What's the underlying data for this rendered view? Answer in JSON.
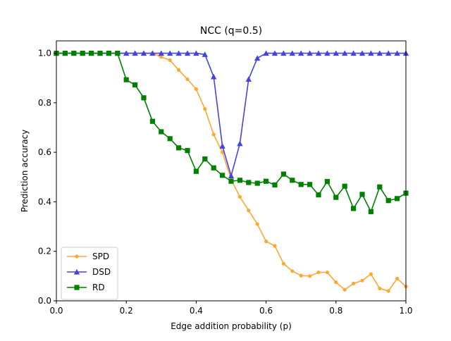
{
  "chart_data": {
    "type": "line",
    "title": "NCC (q=0.5)",
    "xlabel": "Edge addition probability (p)",
    "ylabel": "Prediction accuracy",
    "xlim": [
      0.0,
      1.0
    ],
    "ylim": [
      0.0,
      1.05
    ],
    "xticks": [
      "0.0",
      "0.2",
      "0.4",
      "0.6",
      "0.8",
      "1.0"
    ],
    "yticks": [
      "0.0",
      "0.2",
      "0.4",
      "0.6",
      "0.8",
      "1.0"
    ],
    "legend_position": "lower-left",
    "grid": false,
    "x": [
      0.0,
      0.025,
      0.05,
      0.075,
      0.1,
      0.125,
      0.15,
      0.175,
      0.2,
      0.225,
      0.25,
      0.275,
      0.3,
      0.325,
      0.35,
      0.375,
      0.4,
      0.425,
      0.45,
      0.475,
      0.5,
      0.525,
      0.55,
      0.575,
      0.6,
      0.625,
      0.65,
      0.675,
      0.7,
      0.725,
      0.75,
      0.775,
      0.8,
      0.825,
      0.85,
      0.875,
      0.9,
      0.925,
      0.95,
      0.975,
      1.0
    ],
    "series": [
      {
        "name": "SPD",
        "color": "#ffa733",
        "marker": "dot",
        "values": [
          1.0,
          1.0,
          1.0,
          1.0,
          1.0,
          1.0,
          1.0,
          1.0,
          1.0,
          1.0,
          1.0,
          1.0,
          0.985,
          0.972,
          0.932,
          0.895,
          0.855,
          0.775,
          0.672,
          0.6,
          0.49,
          0.42,
          0.365,
          0.31,
          0.24,
          0.222,
          0.15,
          0.12,
          0.102,
          0.1,
          0.115,
          0.115,
          0.075,
          0.045,
          0.07,
          0.082,
          0.108,
          0.05,
          0.04,
          0.09,
          0.058
        ]
      },
      {
        "name": "DSD",
        "color": "#4444dd",
        "marker": "triangle",
        "values": [
          1.0,
          1.0,
          1.0,
          1.0,
          1.0,
          1.0,
          1.0,
          1.0,
          1.0,
          1.0,
          1.0,
          1.0,
          1.0,
          1.0,
          1.0,
          1.0,
          1.0,
          0.995,
          0.905,
          0.625,
          0.505,
          0.635,
          0.895,
          0.98,
          1.0,
          1.0,
          1.0,
          1.0,
          1.0,
          1.0,
          1.0,
          1.0,
          1.0,
          1.0,
          1.0,
          1.0,
          1.0,
          1.0,
          1.0,
          1.0,
          1.0
        ]
      },
      {
        "name": "RD",
        "color": "#008000",
        "marker": "square",
        "values": [
          1.0,
          1.0,
          1.0,
          1.0,
          1.0,
          1.0,
          1.0,
          1.0,
          0.893,
          0.872,
          0.82,
          0.725,
          0.683,
          0.655,
          0.618,
          0.607,
          0.523,
          0.573,
          0.537,
          0.507,
          0.483,
          0.487,
          0.478,
          0.475,
          0.483,
          0.468,
          0.512,
          0.487,
          0.47,
          0.47,
          0.428,
          0.482,
          0.418,
          0.463,
          0.373,
          0.43,
          0.36,
          0.46,
          0.405,
          0.413,
          0.435
        ]
      }
    ]
  }
}
